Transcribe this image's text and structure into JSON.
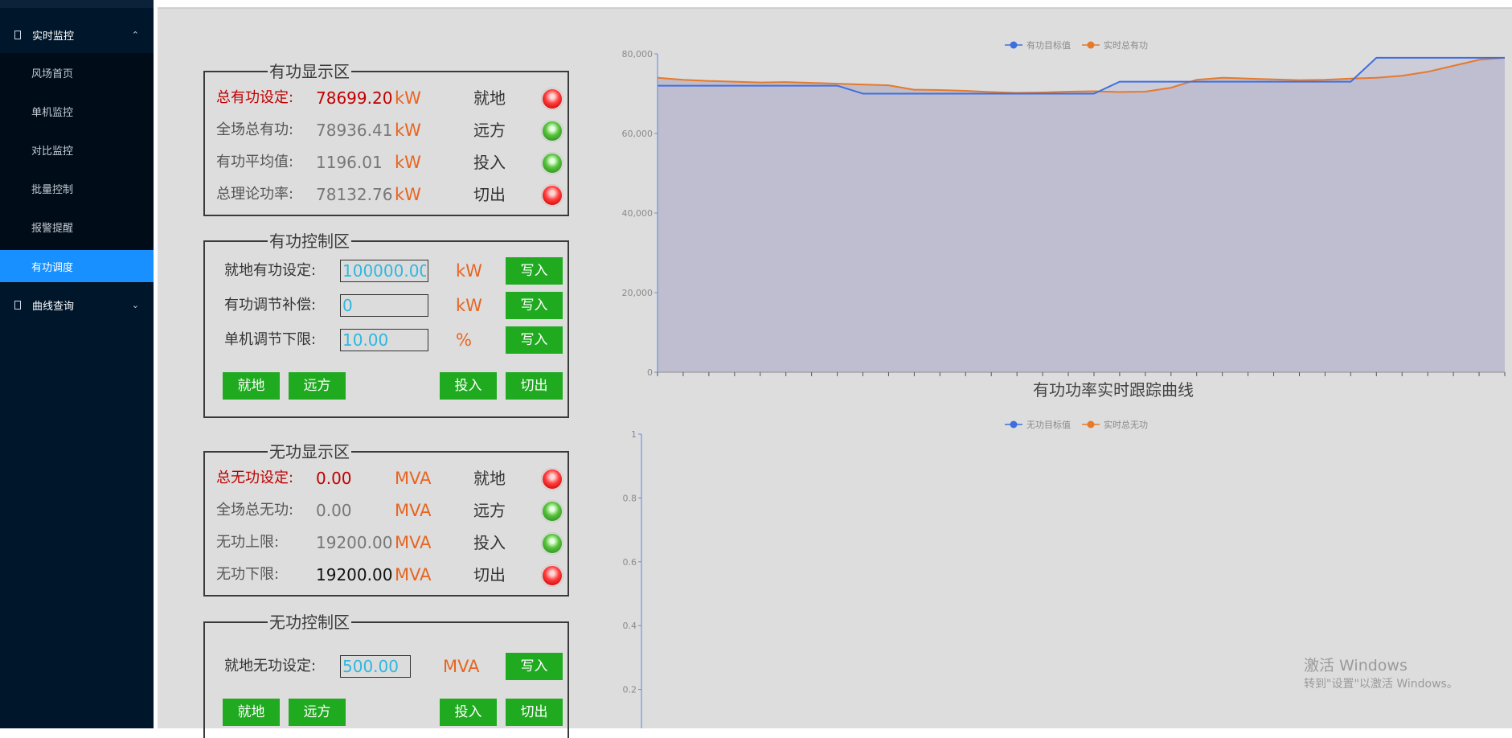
{
  "sidebar": {
    "group_realtime": "实时监控",
    "items": [
      "风场首页",
      "单机监控",
      "对比监控",
      "批量控制",
      "报警提醒",
      "有功调度"
    ],
    "active_index": 5,
    "group_curve": "曲线查询"
  },
  "active_display": {
    "title": "有功显示区",
    "rows": [
      {
        "label": "总有功设定:",
        "value": "78699.20",
        "unit": "kW",
        "mode": "就地",
        "led": "red"
      },
      {
        "label": "全场总有功:",
        "value": "78936.41",
        "unit": "kW",
        "mode": "远方",
        "led": "green"
      },
      {
        "label": "有功平均值:",
        "value": "1196.01",
        "unit": "kW",
        "mode": "投入",
        "led": "green"
      },
      {
        "label": "总理论功率:",
        "value": "78132.76",
        "unit": "kW",
        "mode": "切出",
        "led": "red"
      }
    ]
  },
  "active_control": {
    "title": "有功控制区",
    "rows": [
      {
        "label": "就地有功设定:",
        "value": "100000.00",
        "unit": "kW",
        "button": "写入"
      },
      {
        "label": "有功调节补偿:",
        "value": "0",
        "unit": "kW",
        "button": "写入"
      },
      {
        "label": "单机调节下限:",
        "value": "10.00",
        "unit": "%",
        "button": "写入"
      }
    ],
    "buttons": [
      "就地",
      "远方",
      "投入",
      "切出"
    ]
  },
  "reactive_display": {
    "title": "无功显示区",
    "rows": [
      {
        "label": "总无功设定:",
        "value": "0.00",
        "unit": "MVA",
        "mode": "就地",
        "led": "red"
      },
      {
        "label": "全场总无功:",
        "value": "0.00",
        "unit": "MVA",
        "mode": "远方",
        "led": "green"
      },
      {
        "label": "无功上限:",
        "value": "19200.00",
        "unit": "MVA",
        "mode": "投入",
        "led": "green"
      },
      {
        "label": "无功下限:",
        "value": "19200.00",
        "unit": "MVA",
        "mode": "切出",
        "led": "red"
      }
    ]
  },
  "reactive_control": {
    "title": "无功控制区",
    "rows": [
      {
        "label": "就地无功设定:",
        "value": "500.00",
        "unit": "MVA",
        "button": "写入"
      }
    ],
    "buttons": [
      "就地",
      "远方",
      "投入",
      "切出"
    ]
  },
  "colors": {
    "target_series": "#3e6fe0",
    "actual_series": "#e6792b",
    "led_red": "#e02020",
    "led_green": "#3aa52a",
    "button_green": "#1faa1f",
    "unit_orange": "#e86420",
    "input_cyan": "#2fb7e0",
    "sidebar_active": "#1890ff"
  },
  "chart_data": [
    {
      "type": "area",
      "title": "有功功率实时跟踪曲线",
      "legend_position": "top-center",
      "ylim": [
        0,
        80000
      ],
      "yticks": [
        "0",
        "20,000",
        "40,000",
        "60,000",
        "80,000"
      ],
      "x_count": 34,
      "series": [
        {
          "name": "有功目标值",
          "color": "#3e6fe0",
          "values": [
            72000,
            72000,
            72000,
            72000,
            72000,
            72000,
            72000,
            72000,
            70000,
            70000,
            70000,
            70000,
            70000,
            70000,
            70000,
            70000,
            70000,
            70000,
            73000,
            73000,
            73000,
            73000,
            73000,
            73000,
            73000,
            73000,
            73000,
            73000,
            79000,
            79000,
            79000,
            79000,
            79000,
            79000
          ]
        },
        {
          "name": "实时总有功",
          "color": "#e6792b",
          "values": [
            74000,
            73500,
            73200,
            73000,
            72800,
            72900,
            72700,
            72500,
            72300,
            72100,
            71000,
            70900,
            70700,
            70400,
            70200,
            70300,
            70500,
            70600,
            70400,
            70500,
            71500,
            73500,
            74000,
            73800,
            73600,
            73400,
            73500,
            73800,
            74000,
            74500,
            75500,
            77000,
            78500,
            79000
          ]
        }
      ]
    },
    {
      "type": "line",
      "title": "",
      "legend_position": "top-center",
      "ylim": [
        0,
        1
      ],
      "yticks": [
        "0.2",
        "0.4",
        "0.6",
        "0.8",
        "1"
      ],
      "series": [
        {
          "name": "无功目标值",
          "color": "#3e6fe0",
          "values": []
        },
        {
          "name": "实时总无功",
          "color": "#e6792b",
          "values": []
        }
      ]
    }
  ],
  "watermark": {
    "line1": "激活 Windows",
    "line2": "转到\"设置\"以激活 Windows。"
  }
}
